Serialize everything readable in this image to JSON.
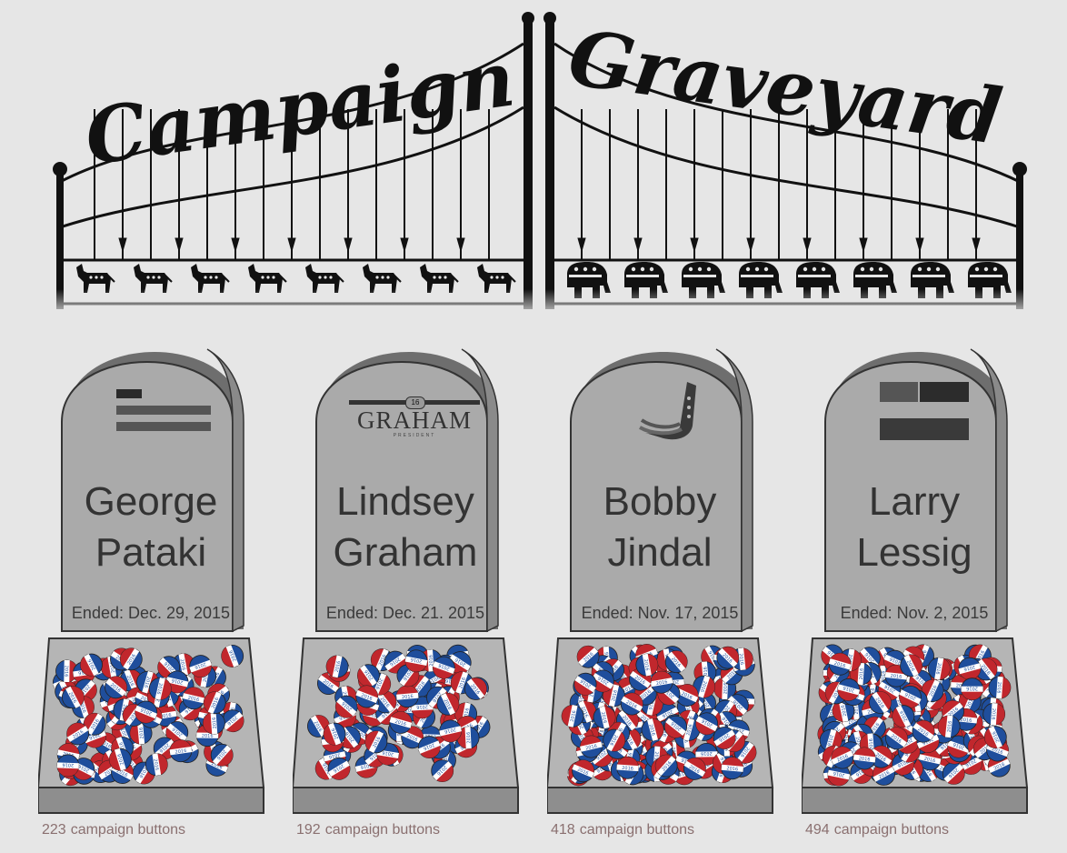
{
  "header": {
    "title_left": "Campaign",
    "title_right": "Graveyard",
    "left_icon": "donkey-icon",
    "right_icon": "elephant-icon",
    "left_icon_count": 8,
    "right_icon_count": 8
  },
  "colors": {
    "background": "#e6e6e6",
    "stone": "#a9a9a9",
    "button_red": "#c1272d",
    "button_blue": "#1f4e9c",
    "caption": "#8a7070"
  },
  "graves": [
    {
      "id": "pataki",
      "first": "George",
      "last": "Pataki",
      "ended": "Ended: Dec. 29, 2015",
      "button_count": "223",
      "logo": "pataki-logo",
      "logo_text": ""
    },
    {
      "id": "graham",
      "first": "Lindsey",
      "last": "Graham",
      "ended": "Ended: Dec. 21. 2015",
      "button_count": "192",
      "logo": "graham-logo",
      "logo_text": "GRAHAM",
      "logo_sub": "PRESIDENT",
      "logo_year": "16"
    },
    {
      "id": "jindal",
      "first": "Bobby",
      "last": "Jindal",
      "ended": "Ended: Nov. 17, 2015",
      "button_count": "418",
      "logo": "jindal-logo",
      "logo_text": ""
    },
    {
      "id": "lessig",
      "first": "Larry",
      "last": "Lessig",
      "ended": "Ended: Nov. 2, 2015",
      "button_count": "494",
      "logo": "lessig-logo",
      "logo_text": ""
    }
  ],
  "caption_suffix": "campaign buttons",
  "button_label": "2016"
}
